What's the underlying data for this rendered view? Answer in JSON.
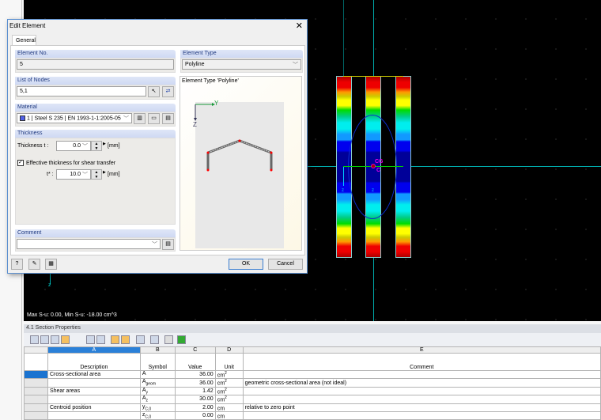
{
  "viewport": {
    "status": "Max S-u: 0.00, Min S-u: -18.00 cm^3",
    "labels": {
      "cg": "CG",
      "c": "C",
      "z": "z"
    }
  },
  "dialog": {
    "title": "Edit Element",
    "tab": "General",
    "element_no": {
      "label": "Element No.",
      "value": "5"
    },
    "element_type": {
      "label": "Element Type",
      "value": "Polyline",
      "preview_title": "Element Type 'Polyline'",
      "axis_y": "Y",
      "axis_z": "Z"
    },
    "nodes": {
      "label": "List of Nodes",
      "value": "5,1"
    },
    "material": {
      "label": "Material",
      "number": "1",
      "name": "Steel S 235",
      "standard": "EN 1993-1-1:2005-05",
      "color": "#5060e8"
    },
    "thickness": {
      "label": "Thickness",
      "t_label": "Thickness    t :",
      "t_value": "0.0",
      "unit": "[mm]",
      "checkbox_label": "Effective thickness for shear transfer",
      "checked": true,
      "tstar_label": "t* :",
      "tstar_value": "10.0"
    },
    "comment": {
      "label": "Comment",
      "value": ""
    },
    "ok": "OK",
    "cancel": "Cancel"
  },
  "table": {
    "title": "4.1 Section Properties",
    "letters": [
      "A",
      "B",
      "C",
      "D",
      "E"
    ],
    "headers": [
      "Description",
      "Symbol",
      "Value",
      "Unit",
      "Comment"
    ],
    "rows": [
      {
        "desc": "Cross-sectional area",
        "sym": "A",
        "sub": "",
        "val": "36.00",
        "unit": "cm",
        "sup": "2",
        "comment": ""
      },
      {
        "desc": "",
        "sym": "A",
        "sub": "geom",
        "val": "36.00",
        "unit": "cm",
        "sup": "2",
        "comment": "geometric cross-sectional area (not ideal)"
      },
      {
        "desc": "Shear areas",
        "sym": "A",
        "sub": "y",
        "val": "1.42",
        "unit": "cm",
        "sup": "2",
        "comment": ""
      },
      {
        "desc": "",
        "sym": "A",
        "sub": "z",
        "val": "30.00",
        "unit": "cm",
        "sup": "2",
        "comment": ""
      },
      {
        "desc": "Centroid position",
        "sym": "y",
        "sub": "C,0",
        "val": "2.00",
        "unit": "cm",
        "sup": "",
        "comment": "relative to zero point"
      },
      {
        "desc": "",
        "sym": "z",
        "sub": "C,0",
        "val": "0.00",
        "unit": "cm",
        "sup": "",
        "comment": ""
      }
    ]
  }
}
